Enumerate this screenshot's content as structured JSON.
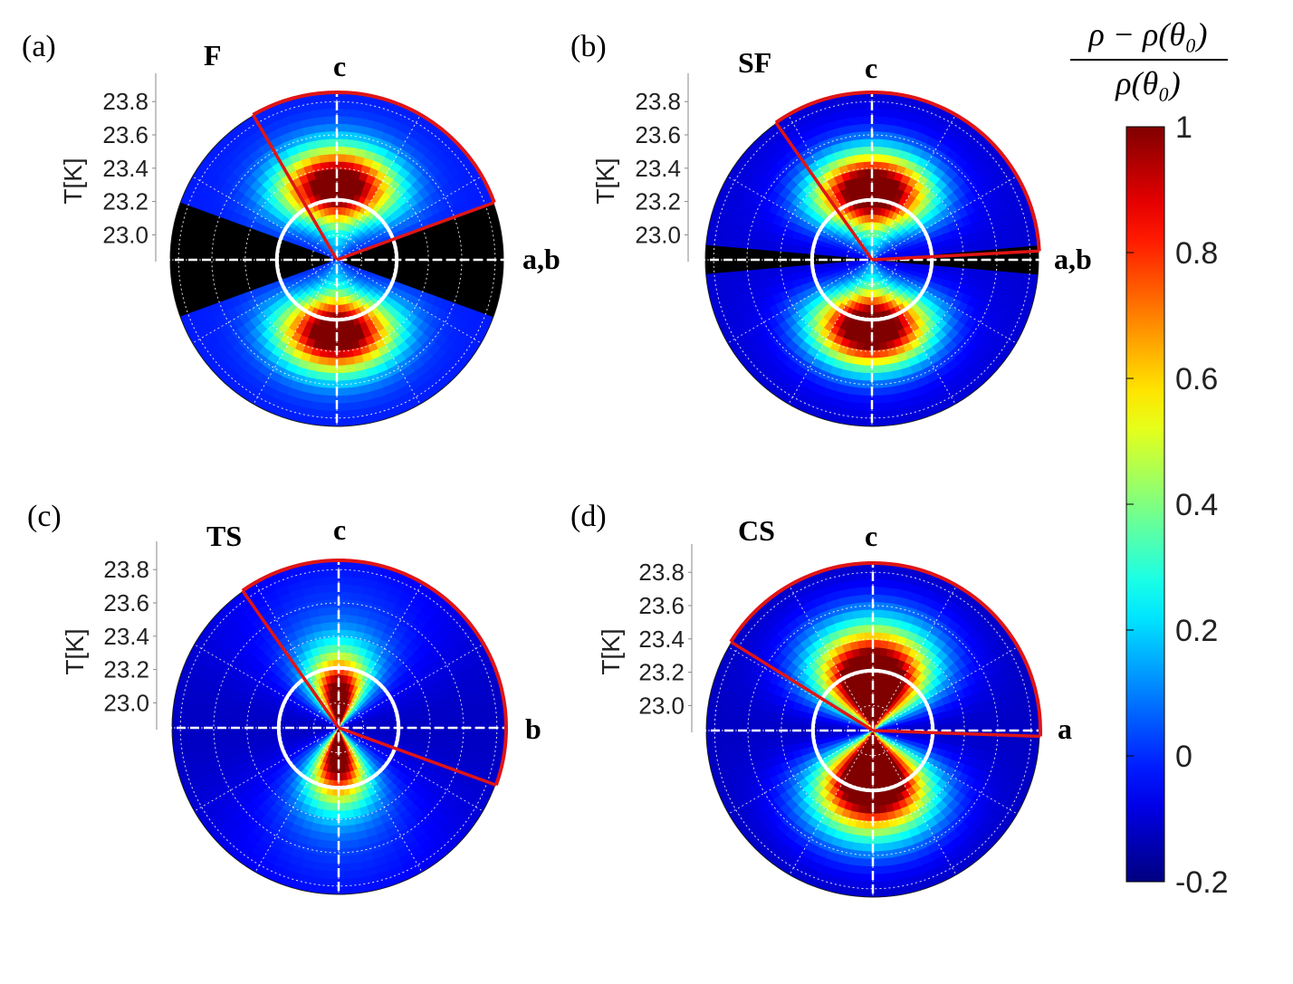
{
  "figure": {
    "colorbar": {
      "title_numerator": "ρ − ρ(θ₀)",
      "title_denominator": "ρ(θ₀)",
      "min": -0.2,
      "max": 1,
      "tick_labels": [
        "1",
        "0.8",
        "0.6",
        "0.4",
        "0.2",
        "0",
        "-0.2"
      ],
      "tick_values": [
        1,
        0.8,
        0.6,
        0.4,
        0.2,
        0,
        -0.2
      ],
      "colormap": "jet"
    }
  },
  "chart_data": [
    {
      "type": "heatmap",
      "projection": "polar",
      "panel_label": "(a)",
      "title": "F",
      "top_axis_label": "c",
      "right_axis_label": "a,b",
      "ylabel": "T[K]",
      "r_ticks": [
        23.0,
        23.2,
        23.4,
        23.6,
        23.8
      ],
      "r_tick_labels": [
        "23.0",
        "23.2",
        "23.4",
        "23.6",
        "23.8"
      ],
      "r_range": [
        22.85,
        23.85
      ],
      "peak_direction": "c",
      "peak_value": 1,
      "masked_region": "black wedge around a,b (±20°)",
      "highlight_arc_deg": [
        20,
        120
      ],
      "grid": true
    },
    {
      "type": "heatmap",
      "projection": "polar",
      "panel_label": "(b)",
      "title": "SF",
      "top_axis_label": "c",
      "right_axis_label": "a,b",
      "ylabel": "T[K]",
      "r_ticks": [
        23.0,
        23.2,
        23.4,
        23.6,
        23.8
      ],
      "r_tick_labels": [
        "23.0",
        "23.2",
        "23.4",
        "23.6",
        "23.8"
      ],
      "r_range": [
        22.85,
        23.85
      ],
      "peak_direction": "c",
      "peak_value": 1,
      "masked_region": "thin black band along a,b (±4°)",
      "highlight_arc_deg": [
        3,
        125
      ],
      "grid": true
    },
    {
      "type": "heatmap",
      "projection": "polar",
      "panel_label": "(c)",
      "title": "TS",
      "top_axis_label": "c",
      "right_axis_label": "b",
      "ylabel": "T[K]",
      "r_ticks": [
        23.0,
        23.2,
        23.4,
        23.6,
        23.8
      ],
      "r_tick_labels": [
        "23.0",
        "23.2",
        "23.4",
        "23.6",
        "23.8"
      ],
      "r_range": [
        22.85,
        23.85
      ],
      "peak_direction": "c",
      "peak_value": 1,
      "highlight_arc_deg": [
        -20,
        125
      ],
      "grid": true
    },
    {
      "type": "heatmap",
      "projection": "polar",
      "panel_label": "(d)",
      "title": "CS",
      "top_axis_label": "c",
      "right_axis_label": "a",
      "ylabel": "T[K]",
      "r_ticks": [
        23.0,
        23.2,
        23.4,
        23.6,
        23.8
      ],
      "r_tick_labels": [
        "23.0",
        "23.2",
        "23.4",
        "23.6",
        "23.8"
      ],
      "r_range": [
        22.85,
        23.85
      ],
      "peak_direction": "c",
      "peak_value": 1,
      "highlight_arc_deg": [
        -2,
        148
      ],
      "grid": true
    }
  ]
}
